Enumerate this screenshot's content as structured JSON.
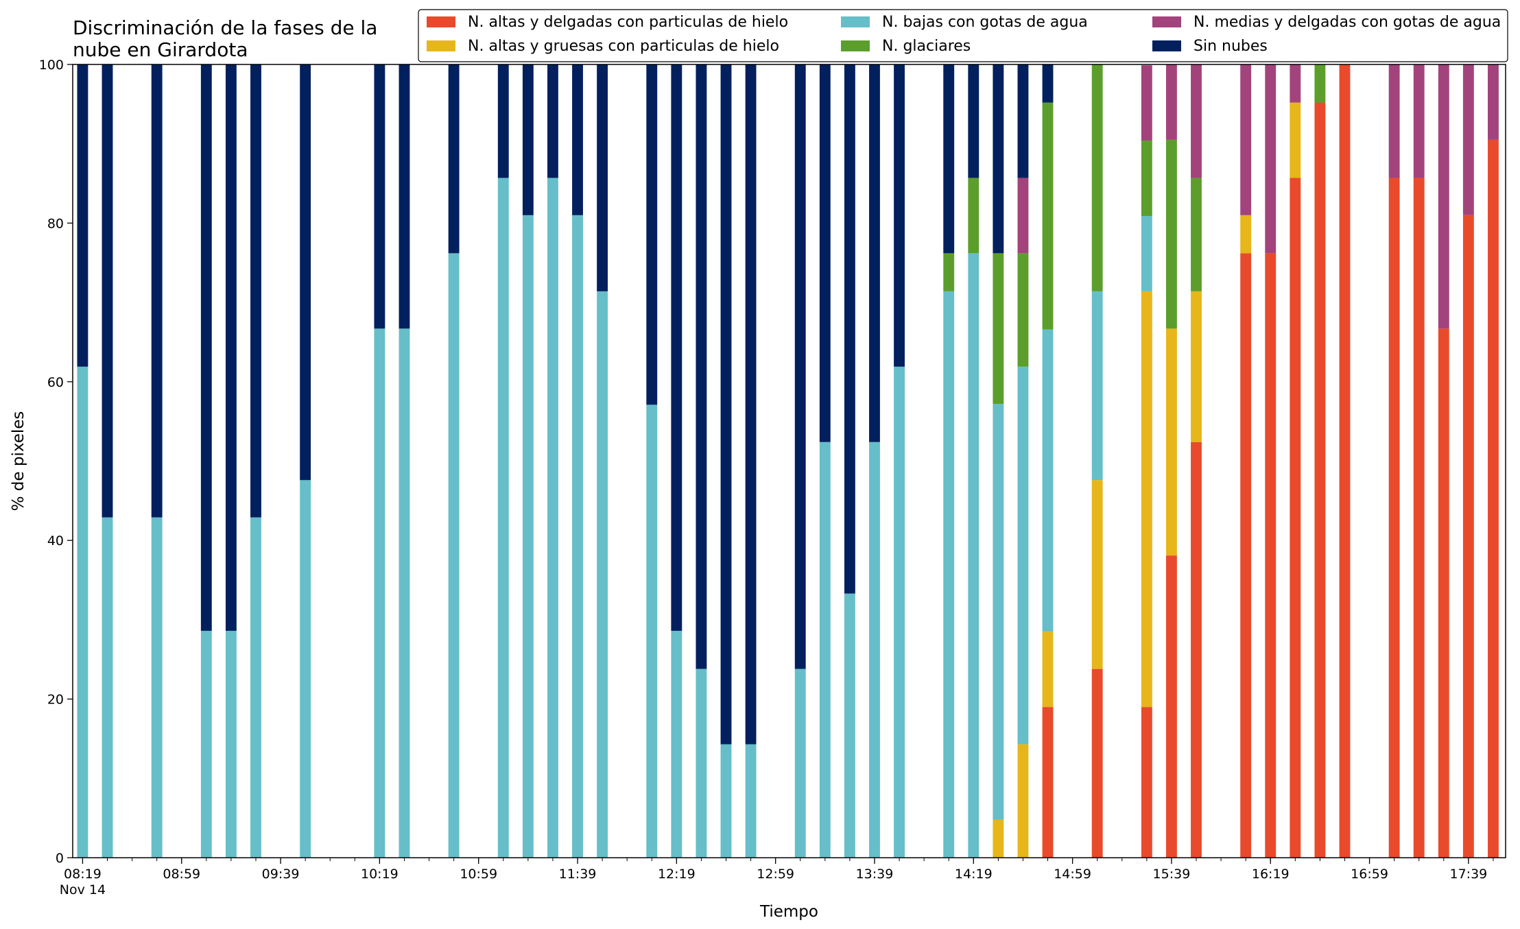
{
  "chart_data": {
    "type": "bar",
    "stacked": true,
    "title_line1": "Discriminación de la fases de la",
    "title_line2": "nube en Girardota",
    "xlabel": "Tiempo",
    "ylabel": "% de pixeles",
    "ylim": [
      0,
      100
    ],
    "yticks": [
      "0",
      "20",
      "40",
      "60",
      "80",
      "100"
    ],
    "date_label": "Nov 14",
    "xlim_minutes": [
      "08:15",
      "17:54"
    ],
    "major_ticks": [
      "08:19",
      "08:59",
      "09:39",
      "10:19",
      "10:59",
      "11:39",
      "12:19",
      "12:59",
      "13:39",
      "14:19",
      "14:59",
      "15:39",
      "16:19",
      "16:59",
      "17:39"
    ],
    "minor_tick_step_minutes": 10,
    "bar_width_minutes": 5,
    "legend_position": "top-right",
    "grid": false,
    "series_keys": [
      "altas_delgadas",
      "altas_gruesas",
      "bajas",
      "glaciares",
      "medias",
      "sin_nubes"
    ],
    "series": [
      {
        "key": "altas_delgadas",
        "name": "N. altas y delgadas con particulas de hielo",
        "color": "#e94a2c"
      },
      {
        "key": "altas_gruesas",
        "name": "N. altas y gruesas con particulas de hielo",
        "color": "#e6b61a"
      },
      {
        "key": "bajas",
        "name": "N. bajas con gotas de agua",
        "color": "#66bec9"
      },
      {
        "key": "glaciares",
        "name": "N. glaciares",
        "color": "#5c9e2c"
      },
      {
        "key": "medias",
        "name": "N. medias y delgadas con gotas de agua",
        "color": "#a3437c"
      },
      {
        "key": "sin_nubes",
        "name": "Sin nubes",
        "color": "#03205e"
      }
    ],
    "bars": [
      {
        "time": "08:19",
        "altas_delgadas": 0,
        "altas_gruesas": 0,
        "bajas": 61.9,
        "glaciares": 0,
        "medias": 0,
        "sin_nubes": 38.1
      },
      {
        "time": "08:29",
        "altas_delgadas": 0,
        "altas_gruesas": 0,
        "bajas": 42.9,
        "glaciares": 0,
        "medias": 0,
        "sin_nubes": 57.1
      },
      {
        "time": "08:49",
        "altas_delgadas": 0,
        "altas_gruesas": 0,
        "bajas": 42.9,
        "glaciares": 0,
        "medias": 0,
        "sin_nubes": 57.1
      },
      {
        "time": "09:09",
        "altas_delgadas": 0,
        "altas_gruesas": 0,
        "bajas": 28.6,
        "glaciares": 0,
        "medias": 0,
        "sin_nubes": 71.4
      },
      {
        "time": "09:19",
        "altas_delgadas": 0,
        "altas_gruesas": 0,
        "bajas": 28.6,
        "glaciares": 0,
        "medias": 0,
        "sin_nubes": 71.4
      },
      {
        "time": "09:29",
        "altas_delgadas": 0,
        "altas_gruesas": 0,
        "bajas": 42.9,
        "glaciares": 0,
        "medias": 0,
        "sin_nubes": 57.1
      },
      {
        "time": "09:49",
        "altas_delgadas": 0,
        "altas_gruesas": 0,
        "bajas": 47.6,
        "glaciares": 0,
        "medias": 0,
        "sin_nubes": 52.4
      },
      {
        "time": "10:19",
        "altas_delgadas": 0,
        "altas_gruesas": 0,
        "bajas": 66.7,
        "glaciares": 0,
        "medias": 0,
        "sin_nubes": 33.3
      },
      {
        "time": "10:29",
        "altas_delgadas": 0,
        "altas_gruesas": 0,
        "bajas": 66.7,
        "glaciares": 0,
        "medias": 0,
        "sin_nubes": 33.3
      },
      {
        "time": "10:49",
        "altas_delgadas": 0,
        "altas_gruesas": 0,
        "bajas": 76.2,
        "glaciares": 0,
        "medias": 0,
        "sin_nubes": 23.8
      },
      {
        "time": "11:09",
        "altas_delgadas": 0,
        "altas_gruesas": 0,
        "bajas": 85.7,
        "glaciares": 0,
        "medias": 0,
        "sin_nubes": 14.3
      },
      {
        "time": "11:19",
        "altas_delgadas": 0,
        "altas_gruesas": 0,
        "bajas": 81.0,
        "glaciares": 0,
        "medias": 0,
        "sin_nubes": 19.0
      },
      {
        "time": "11:29",
        "altas_delgadas": 0,
        "altas_gruesas": 0,
        "bajas": 85.7,
        "glaciares": 0,
        "medias": 0,
        "sin_nubes": 14.3
      },
      {
        "time": "11:39",
        "altas_delgadas": 0,
        "altas_gruesas": 0,
        "bajas": 81.0,
        "glaciares": 0,
        "medias": 0,
        "sin_nubes": 19.0
      },
      {
        "time": "11:49",
        "altas_delgadas": 0,
        "altas_gruesas": 0,
        "bajas": 71.4,
        "glaciares": 0,
        "medias": 0,
        "sin_nubes": 28.6
      },
      {
        "time": "12:09",
        "altas_delgadas": 0,
        "altas_gruesas": 0,
        "bajas": 57.1,
        "glaciares": 0,
        "medias": 0,
        "sin_nubes": 42.9
      },
      {
        "time": "12:19",
        "altas_delgadas": 0,
        "altas_gruesas": 0,
        "bajas": 28.6,
        "glaciares": 0,
        "medias": 0,
        "sin_nubes": 71.4
      },
      {
        "time": "12:29",
        "altas_delgadas": 0,
        "altas_gruesas": 0,
        "bajas": 23.8,
        "glaciares": 0,
        "medias": 0,
        "sin_nubes": 76.2
      },
      {
        "time": "12:39",
        "altas_delgadas": 0,
        "altas_gruesas": 0,
        "bajas": 14.3,
        "glaciares": 0,
        "medias": 0,
        "sin_nubes": 85.7
      },
      {
        "time": "12:49",
        "altas_delgadas": 0,
        "altas_gruesas": 0,
        "bajas": 14.3,
        "glaciares": 0,
        "medias": 0,
        "sin_nubes": 85.7
      },
      {
        "time": "13:09",
        "altas_delgadas": 0,
        "altas_gruesas": 0,
        "bajas": 23.8,
        "glaciares": 0,
        "medias": 0,
        "sin_nubes": 76.2
      },
      {
        "time": "13:19",
        "altas_delgadas": 0,
        "altas_gruesas": 0,
        "bajas": 52.4,
        "glaciares": 0,
        "medias": 0,
        "sin_nubes": 47.6
      },
      {
        "time": "13:29",
        "altas_delgadas": 0,
        "altas_gruesas": 0,
        "bajas": 33.3,
        "glaciares": 0,
        "medias": 0,
        "sin_nubes": 66.7
      },
      {
        "time": "13:39",
        "altas_delgadas": 0,
        "altas_gruesas": 0,
        "bajas": 52.4,
        "glaciares": 0,
        "medias": 0,
        "sin_nubes": 47.6
      },
      {
        "time": "13:49",
        "altas_delgadas": 0,
        "altas_gruesas": 0,
        "bajas": 61.9,
        "glaciares": 0,
        "medias": 0,
        "sin_nubes": 38.1
      },
      {
        "time": "14:09",
        "altas_delgadas": 0,
        "altas_gruesas": 0,
        "bajas": 71.4,
        "glaciares": 4.8,
        "medias": 0,
        "sin_nubes": 23.8
      },
      {
        "time": "14:19",
        "altas_delgadas": 0,
        "altas_gruesas": 0,
        "bajas": 76.2,
        "glaciares": 9.5,
        "medias": 0,
        "sin_nubes": 14.3
      },
      {
        "time": "14:29",
        "altas_delgadas": 0,
        "altas_gruesas": 4.8,
        "bajas": 52.4,
        "glaciares": 19.0,
        "medias": 0,
        "sin_nubes": 23.8
      },
      {
        "time": "14:39",
        "altas_delgadas": 0,
        "altas_gruesas": 14.3,
        "bajas": 47.6,
        "glaciares": 14.3,
        "medias": 9.5,
        "sin_nubes": 14.3
      },
      {
        "time": "14:49",
        "altas_delgadas": 19.0,
        "altas_gruesas": 9.5,
        "bajas": 38.1,
        "glaciares": 28.6,
        "medias": 0,
        "sin_nubes": 4.8
      },
      {
        "time": "15:09",
        "altas_delgadas": 23.8,
        "altas_gruesas": 23.8,
        "bajas": 23.8,
        "glaciares": 28.6,
        "medias": 0,
        "sin_nubes": 0
      },
      {
        "time": "15:29",
        "altas_delgadas": 19.0,
        "altas_gruesas": 52.4,
        "bajas": 9.5,
        "glaciares": 9.5,
        "medias": 9.5,
        "sin_nubes": 0
      },
      {
        "time": "15:39",
        "altas_delgadas": 38.1,
        "altas_gruesas": 28.6,
        "bajas": 0,
        "glaciares": 23.8,
        "medias": 9.5,
        "sin_nubes": 0
      },
      {
        "time": "15:49",
        "altas_delgadas": 52.4,
        "altas_gruesas": 19.0,
        "bajas": 0,
        "glaciares": 14.3,
        "medias": 14.3,
        "sin_nubes": 0
      },
      {
        "time": "16:09",
        "altas_delgadas": 76.2,
        "altas_gruesas": 4.8,
        "bajas": 0,
        "glaciares": 0,
        "medias": 19.0,
        "sin_nubes": 0
      },
      {
        "time": "16:19",
        "altas_delgadas": 76.2,
        "altas_gruesas": 0,
        "bajas": 0,
        "glaciares": 0,
        "medias": 23.8,
        "sin_nubes": 0
      },
      {
        "time": "16:29",
        "altas_delgadas": 85.7,
        "altas_gruesas": 9.5,
        "bajas": 0,
        "glaciares": 0,
        "medias": 4.8,
        "sin_nubes": 0
      },
      {
        "time": "16:39",
        "altas_delgadas": 95.2,
        "altas_gruesas": 0,
        "bajas": 0,
        "glaciares": 4.8,
        "medias": 0,
        "sin_nubes": 0
      },
      {
        "time": "16:49",
        "altas_delgadas": 100,
        "altas_gruesas": 0,
        "bajas": 0,
        "glaciares": 0,
        "medias": 0,
        "sin_nubes": 0
      },
      {
        "time": "17:09",
        "altas_delgadas": 85.7,
        "altas_gruesas": 0,
        "bajas": 0,
        "glaciares": 0,
        "medias": 14.3,
        "sin_nubes": 0
      },
      {
        "time": "17:19",
        "altas_delgadas": 85.7,
        "altas_gruesas": 0,
        "bajas": 0,
        "glaciares": 0,
        "medias": 14.3,
        "sin_nubes": 0
      },
      {
        "time": "17:29",
        "altas_delgadas": 66.7,
        "altas_gruesas": 0,
        "bajas": 0,
        "glaciares": 0,
        "medias": 33.3,
        "sin_nubes": 0
      },
      {
        "time": "17:39",
        "altas_delgadas": 81.0,
        "altas_gruesas": 0,
        "bajas": 0,
        "glaciares": 0,
        "medias": 19.0,
        "sin_nubes": 0
      },
      {
        "time": "17:49",
        "altas_delgadas": 90.5,
        "altas_gruesas": 0,
        "bajas": 0,
        "glaciares": 0,
        "medias": 9.5,
        "sin_nubes": 0
      }
    ]
  }
}
